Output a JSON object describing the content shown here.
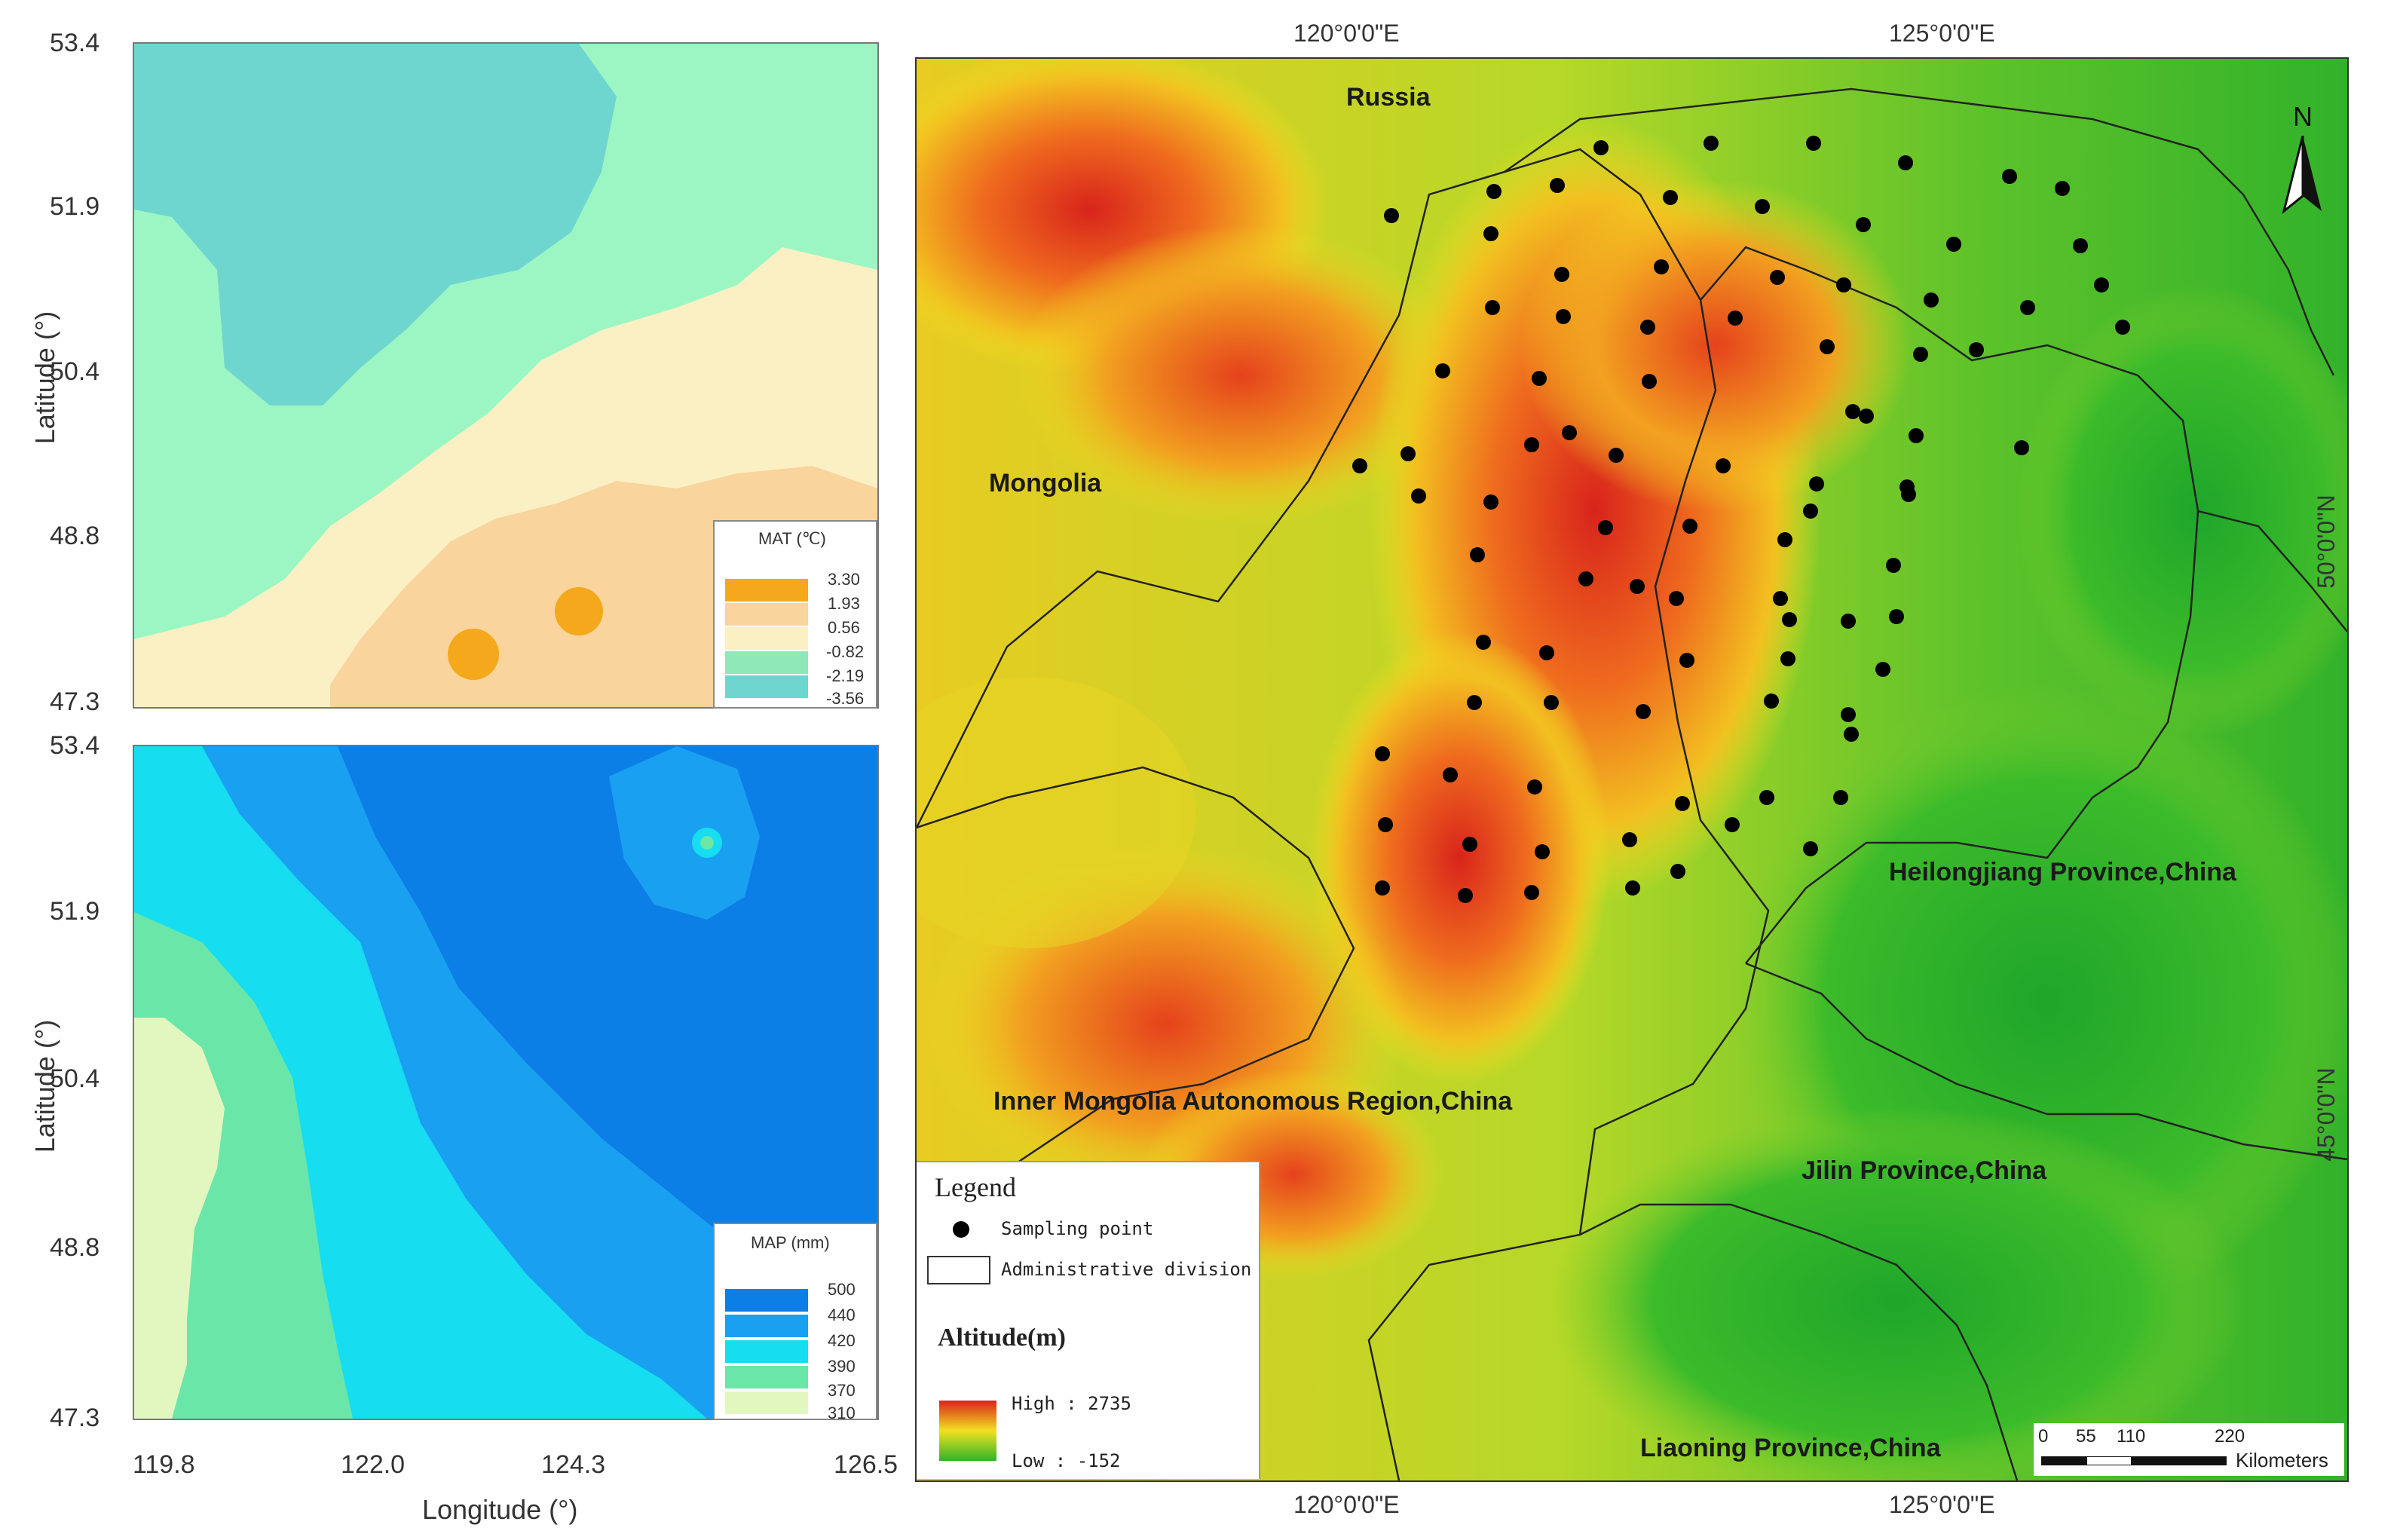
{
  "mat_panel": {
    "y_ticks": [
      "53.4",
      "51.9",
      "50.4",
      "48.8",
      "47.3"
    ],
    "y_label": "Latitude (°)",
    "legend": {
      "title": "MAT (℃)",
      "values": [
        "3.30",
        "1.93",
        "0.56",
        "-0.82",
        "-2.19",
        "-3.56"
      ],
      "colors": [
        "#f5a81c",
        "#f9d49c",
        "#fbf0c4",
        "#8fe8b8",
        "#6fd6cf"
      ]
    }
  },
  "map_panel": {
    "y_ticks": [
      "53.4",
      "51.9",
      "50.4",
      "48.8",
      "47.3"
    ],
    "y_label": "Latitude (°)",
    "x_ticks": [
      "119.8",
      "122.0",
      "124.3",
      "126.5"
    ],
    "x_label": "Longitude (°)",
    "legend": {
      "title": "MAP (mm)",
      "values": [
        "500",
        "440",
        "420",
        "390",
        "370",
        "310"
      ],
      "colors": [
        "#0b7fe6",
        "#1aa0f0",
        "#16ddf0",
        "#6ae7a8",
        "#e2f7c0"
      ]
    }
  },
  "relief_map": {
    "top_coords": [
      "120°0'0\"E",
      "125°0'0\"E"
    ],
    "bottom_coords": [
      "120°0'0\"E",
      "125°0'0\"E"
    ],
    "right_coords": [
      "50°0'0\"N",
      "45°0'0\"N"
    ],
    "north_arrow": "N",
    "regions": {
      "russia": "Russia",
      "mongolia": "Mongolia",
      "heilongjiang": "Heilongjiang Province,China",
      "inner_mongolia": "Inner Mongolia Autonomous Region,China",
      "jilin": "Jilin Province,China",
      "liaoning": "Liaoning Province,China"
    },
    "legend": {
      "title": "Legend",
      "sampling_point": "Sampling point",
      "admin_division": "Administrative division",
      "altitude_title": "Altitude(m)",
      "high": "High : 2735",
      "low": "Low : -152"
    },
    "scale_bar": {
      "ticks": [
        "0",
        "55",
        "110",
        "220"
      ],
      "unit": "Kilometers"
    },
    "colors": {
      "low": "#2fb52a",
      "mid": "#f2e020",
      "high": "#d8241b"
    }
  }
}
